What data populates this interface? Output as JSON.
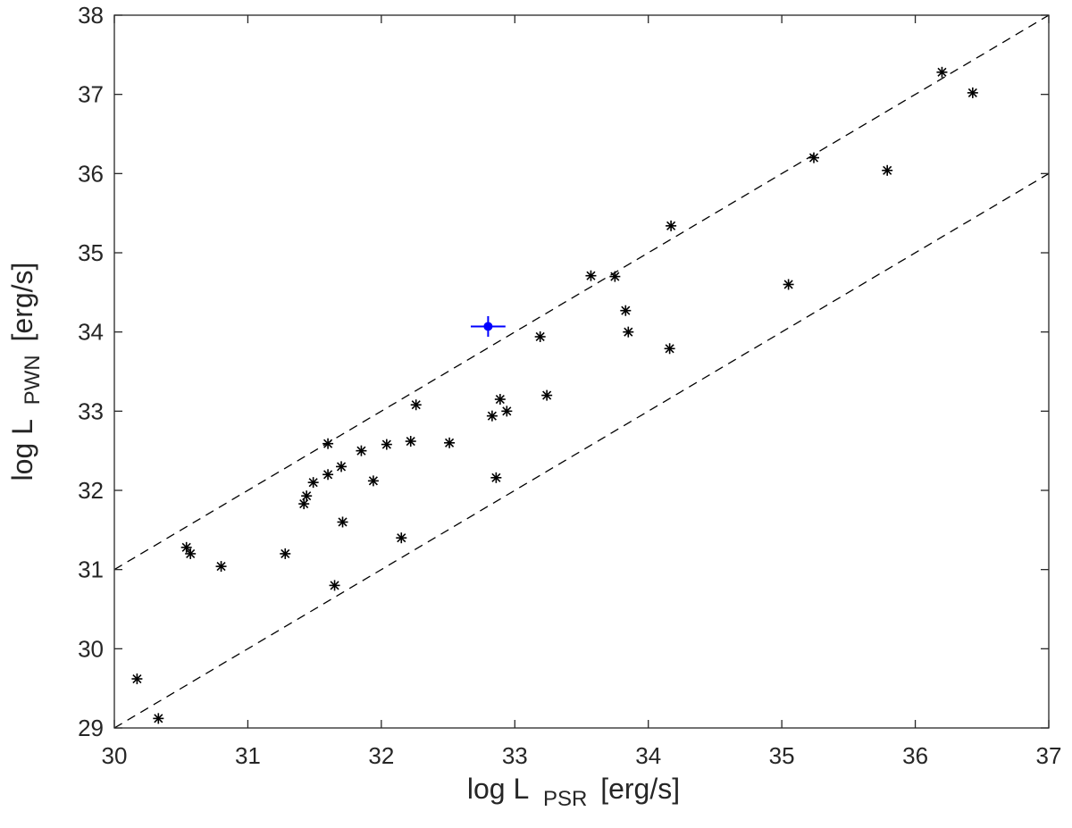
{
  "chart_data": {
    "type": "scatter",
    "xlim": [
      30,
      37
    ],
    "ylim": [
      29,
      38
    ],
    "xticks": [
      30,
      31,
      32,
      33,
      34,
      35,
      36,
      37
    ],
    "yticks": [
      29,
      30,
      31,
      32,
      33,
      34,
      35,
      36,
      37,
      38
    ],
    "xlabel": {
      "main": "log L",
      "sub": "PSR",
      "unit": "[erg/s]"
    },
    "ylabel": {
      "main": "log L",
      "sub": "PWN",
      "unit": "[erg/s]"
    },
    "grid": false,
    "reference_lines": [
      {
        "style": "dashed",
        "color": "#000000",
        "intercept": 1,
        "points": [
          [
            30,
            31
          ],
          [
            37,
            38
          ]
        ]
      },
      {
        "style": "dashed",
        "color": "#000000",
        "intercept": -1,
        "points": [
          [
            30,
            29
          ],
          [
            37,
            36
          ]
        ]
      }
    ],
    "series": [
      {
        "marker": "asterisk",
        "color": "#000000",
        "points": [
          [
            30.17,
            29.62
          ],
          [
            30.33,
            29.12
          ],
          [
            30.54,
            31.28
          ],
          [
            30.57,
            31.2
          ],
          [
            30.8,
            31.04
          ],
          [
            31.28,
            31.2
          ],
          [
            31.42,
            31.83
          ],
          [
            31.44,
            31.93
          ],
          [
            31.49,
            32.1
          ],
          [
            31.6,
            32.59
          ],
          [
            31.6,
            32.2
          ],
          [
            31.65,
            30.8
          ],
          [
            31.7,
            32.3
          ],
          [
            31.71,
            31.6
          ],
          [
            31.85,
            32.5
          ],
          [
            31.94,
            32.12
          ],
          [
            32.04,
            32.58
          ],
          [
            32.15,
            31.4
          ],
          [
            32.22,
            32.62
          ],
          [
            32.26,
            33.08
          ],
          [
            32.51,
            32.6
          ],
          [
            32.83,
            32.94
          ],
          [
            32.86,
            32.16
          ],
          [
            32.89,
            33.15
          ],
          [
            32.94,
            33.0
          ],
          [
            33.19,
            33.94
          ],
          [
            33.24,
            33.2
          ],
          [
            33.57,
            34.71
          ],
          [
            33.75,
            34.7
          ],
          [
            33.83,
            34.27
          ],
          [
            33.85,
            34.0
          ],
          [
            34.16,
            33.79
          ],
          [
            34.17,
            35.34
          ],
          [
            35.05,
            34.6
          ],
          [
            35.24,
            36.2
          ],
          [
            35.79,
            36.04
          ],
          [
            36.2,
            37.28
          ],
          [
            36.43,
            37.02
          ]
        ]
      },
      {
        "marker": "filled-circle-errorbar",
        "color": "#0000ff",
        "points": [
          [
            32.8,
            34.07
          ]
        ],
        "xerr": 0.13,
        "yerr": 0.13
      }
    ]
  }
}
